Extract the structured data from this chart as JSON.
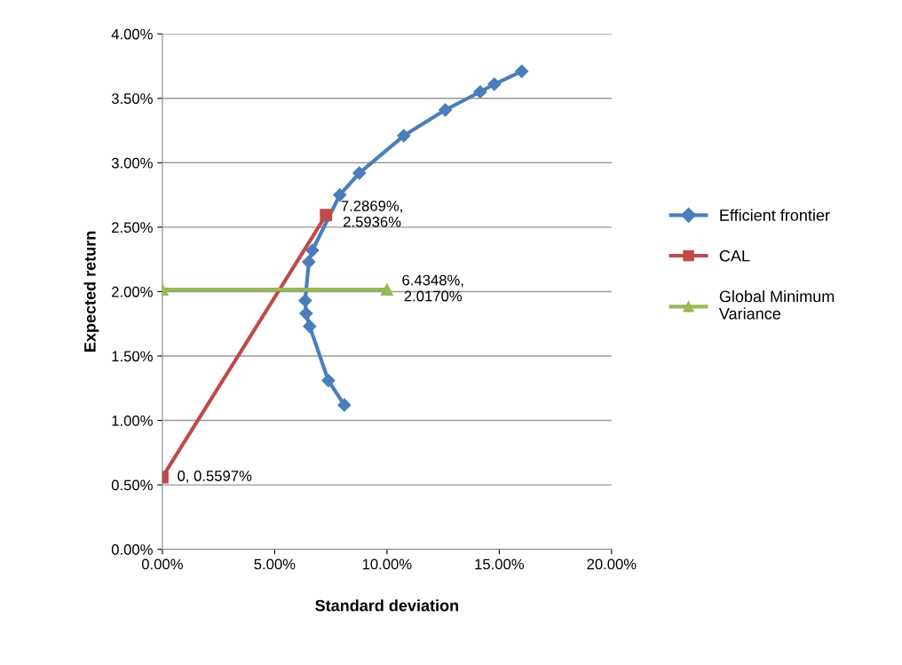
{
  "chart_data": {
    "type": "line",
    "xlabel": "Standard deviation",
    "ylabel": "Expected return",
    "xlim": [
      0,
      20
    ],
    "ylim": [
      0,
      4
    ],
    "xticks": [
      {
        "value": 0,
        "label": "0.00%"
      },
      {
        "value": 5,
        "label": "5.00%"
      },
      {
        "value": 10,
        "label": "10.00%"
      },
      {
        "value": 15,
        "label": "15.00%"
      },
      {
        "value": 20,
        "label": "20.00%"
      }
    ],
    "yticks": [
      {
        "value": 0,
        "label": "0.00%"
      },
      {
        "value": 0.5,
        "label": "0.50%"
      },
      {
        "value": 1,
        "label": "1.00%"
      },
      {
        "value": 1.5,
        "label": "1.50%"
      },
      {
        "value": 2,
        "label": "2.00%"
      },
      {
        "value": 2.5,
        "label": "2.50%"
      },
      {
        "value": 3,
        "label": "3.00%"
      },
      {
        "value": 3.5,
        "label": "3.50%"
      },
      {
        "value": 4,
        "label": "4.00%"
      }
    ],
    "grid": "y",
    "legend": "right",
    "series": [
      {
        "name": "Efficient frontier",
        "color": "#4a7ebb",
        "marker": "diamond",
        "x": [
          8.1,
          7.39,
          6.56,
          6.4,
          6.36,
          6.52,
          6.68,
          7.9,
          8.77,
          10.75,
          12.6,
          14.15,
          14.78,
          16.0
        ],
        "values": [
          1.12,
          1.31,
          1.73,
          1.83,
          1.93,
          2.23,
          2.32,
          2.75,
          2.92,
          3.21,
          3.41,
          3.55,
          3.61,
          3.71
        ]
      },
      {
        "name": "CAL",
        "color": "#be4b48",
        "marker": "square",
        "x": [
          0,
          7.2869
        ],
        "values": [
          0.5597,
          2.5936
        ],
        "value_labels": [
          "0, 0.5597%",
          "7.2869%,\n2.5936%"
        ]
      },
      {
        "name": "Global Minimum\nVariance",
        "color": "#98b954",
        "marker": "triangle",
        "x": [
          0,
          10
        ],
        "values": [
          2.017,
          2.017
        ],
        "value_labels": [
          null,
          "6.4348%,\n2.0170%"
        ]
      }
    ]
  }
}
